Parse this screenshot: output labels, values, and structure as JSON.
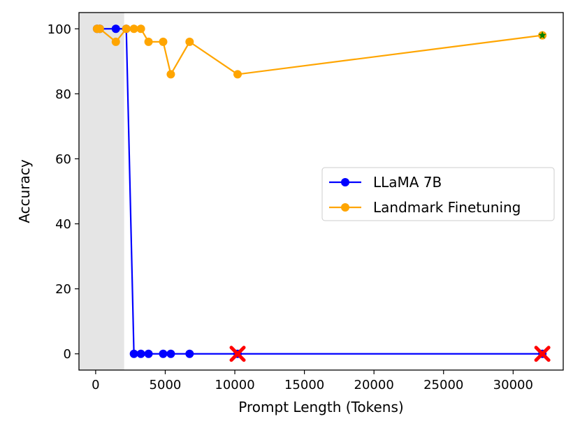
{
  "chart_data": {
    "type": "line",
    "xlabel": "Prompt Length (Tokens)",
    "ylabel": "Accuracy",
    "xlim": [
      -1200,
      33600
    ],
    "ylim": [
      -5,
      105
    ],
    "xticks": [
      0,
      5000,
      10000,
      15000,
      20000,
      25000,
      30000
    ],
    "yticks": [
      0,
      20,
      40,
      60,
      80,
      100
    ],
    "grid": false,
    "legend_position": "center-right",
    "shaded_region": {
      "x_from": -1200,
      "x_to": 2048,
      "color": "#e5e5e5"
    },
    "series": [
      {
        "name": "LLaMA 7B",
        "color": "#0000ff",
        "marker": "circle",
        "x": [
          100,
          300,
          1450,
          2200,
          2750,
          3250,
          3800,
          4850,
          5400,
          6750,
          10200,
          32100
        ],
        "y": [
          100,
          100,
          100,
          100,
          0,
          0,
          0,
          0,
          0,
          0,
          0,
          0
        ]
      },
      {
        "name": "Landmark Finetuning",
        "color": "#ffa500",
        "marker": "circle",
        "x": [
          100,
          300,
          1450,
          2200,
          2750,
          3250,
          3800,
          4850,
          5400,
          6750,
          10200,
          32100
        ],
        "y": [
          100,
          100,
          96,
          100,
          100,
          100,
          96,
          96,
          86,
          96,
          86,
          98
        ]
      }
    ],
    "annotations": [
      {
        "type": "x-marker",
        "x": 10200,
        "y": 0,
        "color": "#ff0000"
      },
      {
        "type": "x-marker",
        "x": 32100,
        "y": 0,
        "color": "#ff0000"
      },
      {
        "type": "star-marker",
        "x": 32100,
        "y": 98,
        "color": "#008000"
      }
    ]
  }
}
